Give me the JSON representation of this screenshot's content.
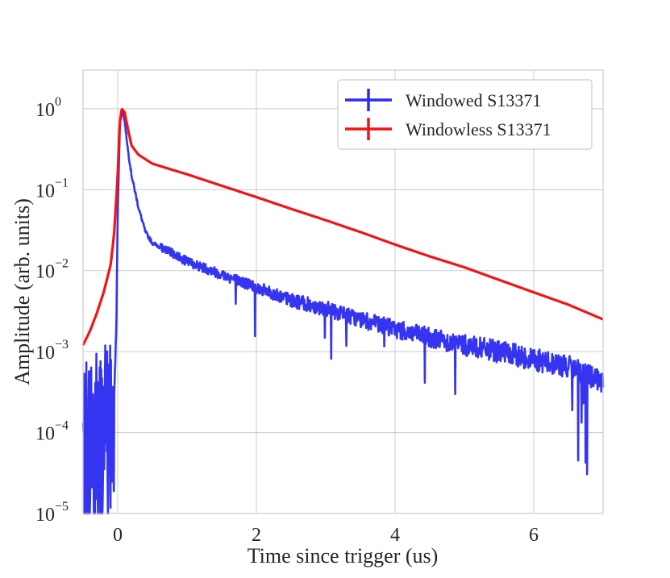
{
  "chart_data": {
    "type": "line",
    "title": "",
    "xlabel": "Time since trigger (us)",
    "ylabel": "Amplitude (arb. units)",
    "xlim": [
      -0.5,
      7
    ],
    "ylim": [
      1e-05,
      3
    ],
    "yscale": "log",
    "grid": true,
    "legend_position": "top-right",
    "x_ticks": [
      {
        "value": 0,
        "label": "0"
      },
      {
        "value": 2,
        "label": "2"
      },
      {
        "value": 4,
        "label": "4"
      },
      {
        "value": 6,
        "label": "6"
      }
    ],
    "y_ticks": [
      {
        "value": 1,
        "base": "10",
        "exp": "0"
      },
      {
        "value": 0.1,
        "base": "10",
        "exp": "−1"
      },
      {
        "value": 0.01,
        "base": "10",
        "exp": "−2"
      },
      {
        "value": 0.001,
        "base": "10",
        "exp": "−3"
      },
      {
        "value": 0.0001,
        "base": "10",
        "exp": "−4"
      },
      {
        "value": 1e-05,
        "base": "10",
        "exp": "−5"
      }
    ],
    "series": [
      {
        "name": "Windowed S13371",
        "color": "#2a2af0",
        "noisy": true,
        "x": [
          -0.5,
          -0.35,
          -0.2,
          -0.1,
          -0.05,
          -0.02,
          0.0,
          0.03,
          0.06,
          0.1,
          0.15,
          0.2,
          0.3,
          0.4,
          0.5,
          0.7,
          1.0,
          1.5,
          2.0,
          2.5,
          3.0,
          3.5,
          4.0,
          4.5,
          5.0,
          5.5,
          6.0,
          6.5,
          6.8,
          7.0
        ],
        "y": [
          8e-05,
          0.0001,
          0.00012,
          0.00015,
          0.0003,
          0.002,
          0.05,
          0.6,
          1.0,
          0.7,
          0.3,
          0.15,
          0.06,
          0.03,
          0.022,
          0.018,
          0.013,
          0.009,
          0.0062,
          0.0043,
          0.0034,
          0.0025,
          0.0019,
          0.0015,
          0.0012,
          0.001,
          0.0008,
          0.00065,
          0.0005,
          0.0004
        ]
      },
      {
        "name": "Windowless S13371",
        "color": "#f21414",
        "noisy": false,
        "x": [
          -0.5,
          -0.4,
          -0.3,
          -0.2,
          -0.1,
          -0.05,
          0.0,
          0.03,
          0.06,
          0.1,
          0.15,
          0.2,
          0.3,
          0.5,
          0.75,
          1.0,
          1.5,
          2.0,
          2.5,
          3.0,
          3.5,
          4.0,
          4.5,
          5.0,
          5.5,
          6.0,
          6.5,
          7.0
        ],
        "y": [
          0.0012,
          0.0018,
          0.003,
          0.0055,
          0.012,
          0.03,
          0.15,
          0.7,
          1.0,
          0.9,
          0.55,
          0.35,
          0.27,
          0.21,
          0.18,
          0.155,
          0.112,
          0.081,
          0.058,
          0.042,
          0.03,
          0.021,
          0.015,
          0.011,
          0.0077,
          0.0054,
          0.0038,
          0.0025
        ]
      }
    ]
  }
}
